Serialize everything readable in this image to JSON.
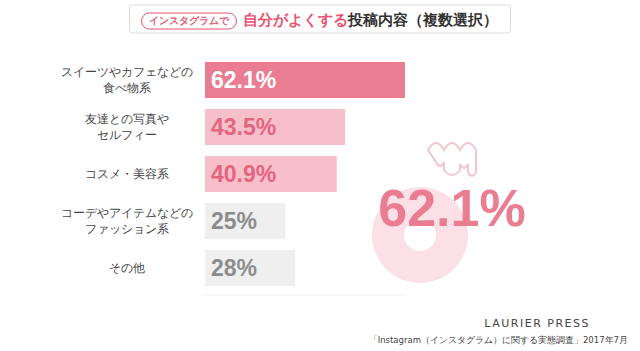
{
  "chart_data": {
    "type": "bar",
    "orientation": "horizontal",
    "title": {
      "tag": "インスタグラムで",
      "highlight": "自分がよくする",
      "text": "投稿内容（複数選択）"
    },
    "categories": [
      "スイーツやカフェなどの\n食べ物系",
      "友達との写真や\nセルフィー",
      "コスメ・美容系",
      "コーデやアイテムなどの\nファッション系",
      "その他"
    ],
    "values": [
      62.1,
      43.5,
      40.9,
      25,
      28
    ],
    "value_labels": [
      "62.1%",
      "43.5%",
      "40.9%",
      "25%",
      "28%"
    ],
    "colors": [
      "#eb7d93",
      "#f7bfca",
      "#f7bfca",
      "#efefef",
      "#efefef"
    ],
    "xlim": [
      0,
      62.1
    ],
    "data_labels": true,
    "tick_labels": "y",
    "grid": false,
    "annotation": "62.1%",
    "brand": "LAURIER PRESS",
    "source": "「Instagram（インスタグラム）に関する実態調査」2017年7月"
  }
}
